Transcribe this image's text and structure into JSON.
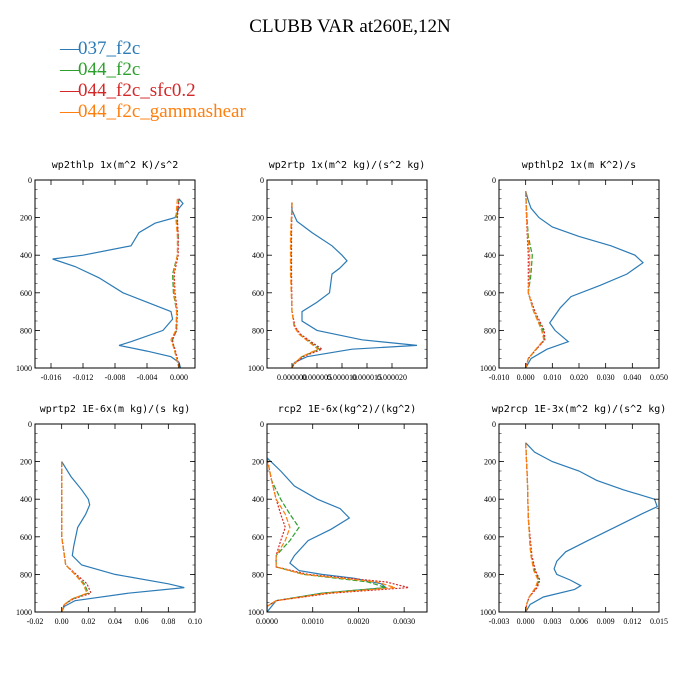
{
  "title": "CLUBB VAR at260E,12N",
  "colors": {
    "037_f2c": "#2c7bb6",
    "044_f2c": "#2ca02c",
    "044_f2c_sfc0.2": "#d62728",
    "044_f2c_gammashear": "#ff7f0e"
  },
  "legend": [
    {
      "name": "037_f2c",
      "color": "#2c7bb6",
      "dash": "solid"
    },
    {
      "name": "044_f2c",
      "color": "#2ca02c",
      "dash": "dashed"
    },
    {
      "name": "044_f2c_sfc0.2",
      "color": "#d62728",
      "dash": "dotted"
    },
    {
      "name": "044_f2c_gammashear",
      "color": "#ff7f0e",
      "dash": "dashed"
    }
  ],
  "chart_data": [
    {
      "type": "line",
      "title": "wp2thlp  1x(m^2 K)/s^2",
      "xlim": [
        -0.018,
        0.002
      ],
      "ylim": [
        1000,
        0
      ],
      "xticks": [
        -0.016,
        -0.012,
        -0.008,
        -0.004,
        0.0
      ],
      "xtick_labels": [
        "-0.016",
        "-0.012",
        "-0.008",
        "-0.004",
        "0.000"
      ],
      "yticks": [
        0,
        200,
        400,
        600,
        800,
        1000
      ],
      "series": [
        {
          "name": "037_f2c",
          "y": [
            100,
            125,
            150,
            200,
            230,
            280,
            350,
            400,
            420,
            460,
            520,
            600,
            650,
            700,
            740,
            800,
            860,
            880,
            910,
            940,
            970,
            1000
          ],
          "x": [
            0.0,
            0.0005,
            0.0,
            -0.0005,
            -0.003,
            -0.005,
            -0.006,
            -0.012,
            -0.0158,
            -0.013,
            -0.01,
            -0.007,
            -0.004,
            -0.001,
            -0.0008,
            -0.002,
            -0.006,
            -0.0075,
            -0.004,
            -0.001,
            0.0,
            0.0002
          ]
        },
        {
          "name": "044_f2c",
          "y": [
            100,
            200,
            300,
            400,
            500,
            600,
            700,
            800,
            850,
            900,
            950,
            1000
          ],
          "x": [
            0.0,
            -0.0003,
            -0.0001,
            -0.0002,
            -0.0008,
            -0.0007,
            -0.0003,
            -0.0003,
            -0.0008,
            -0.0006,
            -0.0003,
            0.0
          ]
        },
        {
          "name": "044_f2c_sfc0.2",
          "y": [
            100,
            200,
            300,
            400,
            500,
            600,
            700,
            800,
            850,
            900,
            950,
            1000
          ],
          "x": [
            0.0,
            -0.0002,
            -0.0001,
            -0.0001,
            -0.0006,
            -0.0005,
            -0.0002,
            -0.0003,
            -0.0009,
            -0.0005,
            -0.0002,
            0.0
          ]
        },
        {
          "name": "044_f2c_gammashear",
          "y": [
            100,
            200,
            300,
            400,
            500,
            600,
            700,
            800,
            850,
            900,
            950,
            1000
          ],
          "x": [
            -0.0002,
            -0.0004,
            -0.0002,
            -0.0002,
            -0.0007,
            -0.0006,
            -0.0003,
            -0.0004,
            -0.001,
            -0.0006,
            -0.0003,
            0.0
          ]
        }
      ]
    },
    {
      "type": "line",
      "title": "wp2rtp  1x(m^2 kg)/(s^2 kg)",
      "xlim": [
        -5e-06,
        2.7e-05
      ],
      "ylim": [
        1000,
        0
      ],
      "xticks": [
        0.0,
        5e-06,
        1e-05,
        1.5e-05,
        2e-05
      ],
      "xtick_labels": [
        "0.000000",
        "0.000005",
        "0.000010",
        "0.000015",
        "0.000020"
      ],
      "yticks": [
        0,
        200,
        400,
        600,
        800,
        1000
      ],
      "series": [
        {
          "name": "037_f2c",
          "y": [
            120,
            160,
            220,
            280,
            350,
            400,
            430,
            470,
            500,
            600,
            650,
            700,
            750,
            800,
            850,
            880,
            900,
            940,
            970,
            1000
          ],
          "x": [
            0.0,
            0.0,
            1e-06,
            4e-06,
            8e-06,
            1e-05,
            1.1e-05,
            9.5e-06,
            8e-06,
            7.5e-06,
            5e-06,
            2e-06,
            2e-06,
            5e-06,
            1.4e-05,
            2.5e-05,
            1.2e-05,
            3e-06,
            5e-07,
            0.0
          ]
        },
        {
          "name": "044_f2c",
          "y": [
            120,
            300,
            500,
            700,
            780,
            820,
            860,
            900,
            940,
            980,
            1000
          ],
          "x": [
            0.0,
            -2e-07,
            -2e-07,
            0.0,
            5e-07,
            1.5e-06,
            3.5e-06,
            5.5e-06,
            2e-06,
            3e-07,
            0.0
          ]
        },
        {
          "name": "044_f2c_sfc0.2",
          "y": [
            120,
            300,
            500,
            700,
            780,
            820,
            860,
            900,
            940,
            980,
            1000
          ],
          "x": [
            0.0,
            -1e-07,
            -1e-07,
            0.0,
            6e-07,
            1.7e-06,
            3.8e-06,
            6e-06,
            2.2e-06,
            4e-07,
            0.0
          ]
        },
        {
          "name": "044_f2c_gammashear",
          "y": [
            120,
            300,
            500,
            700,
            780,
            820,
            860,
            900,
            940,
            980,
            1000
          ],
          "x": [
            0.0,
            -3e-07,
            -3e-07,
            0.0,
            4e-07,
            1.4e-06,
            3.3e-06,
            5.2e-06,
            1.9e-06,
            3e-07,
            0.0
          ]
        }
      ]
    },
    {
      "type": "line",
      "title": "wpthlp2  1x(m K^2)/s",
      "xlim": [
        -0.01,
        0.05
      ],
      "ylim": [
        1000,
        0
      ],
      "xticks": [
        -0.01,
        0.0,
        0.01,
        0.02,
        0.03,
        0.04,
        0.05
      ],
      "xtick_labels": [
        "-0.010",
        "0.000",
        "0.010",
        "0.020",
        "0.030",
        "0.040",
        "0.050"
      ],
      "yticks": [
        0,
        200,
        400,
        600,
        800,
        1000
      ],
      "series": [
        {
          "name": "037_f2c",
          "y": [
            60,
            110,
            150,
            200,
            250,
            300,
            350,
            400,
            440,
            500,
            560,
            620,
            680,
            720,
            760,
            800,
            860,
            900,
            950,
            1000
          ],
          "x": [
            0.0,
            0.001,
            0.002,
            0.005,
            0.01,
            0.02,
            0.032,
            0.041,
            0.044,
            0.038,
            0.028,
            0.017,
            0.013,
            0.011,
            0.009,
            0.011,
            0.016,
            0.008,
            0.002,
            0.0
          ]
        },
        {
          "name": "044_f2c",
          "y": [
            60,
            200,
            300,
            400,
            500,
            600,
            700,
            800,
            850,
            900,
            950,
            1000
          ],
          "x": [
            0.0,
            0.0005,
            0.001,
            0.0025,
            0.002,
            0.001,
            0.003,
            0.0065,
            0.007,
            0.004,
            0.001,
            0.0
          ]
        },
        {
          "name": "044_f2c_sfc0.2",
          "y": [
            60,
            200,
            300,
            400,
            500,
            600,
            700,
            800,
            850,
            900,
            950,
            1000
          ],
          "x": [
            0.0,
            0.0003,
            0.0006,
            0.001,
            0.001,
            0.001,
            0.0035,
            0.007,
            0.0072,
            0.004,
            0.001,
            0.0
          ]
        },
        {
          "name": "044_f2c_gammashear",
          "y": [
            60,
            200,
            300,
            400,
            500,
            600,
            700,
            800,
            850,
            900,
            950,
            1000
          ],
          "x": [
            0.0,
            0.0004,
            0.0008,
            0.0015,
            0.0015,
            0.001,
            0.003,
            0.006,
            0.0068,
            0.0038,
            0.001,
            0.0
          ]
        }
      ]
    },
    {
      "type": "line",
      "title": "wprtp2  1E-6x(m kg)/(s kg)",
      "xlim": [
        -0.02,
        0.1
      ],
      "ylim": [
        1000,
        0
      ],
      "xticks": [
        -0.02,
        0.0,
        0.02,
        0.04,
        0.06,
        0.08,
        0.1
      ],
      "xtick_labels": [
        "-0.02",
        "0.00",
        "0.02",
        "0.04",
        "0.06",
        "0.08",
        "0.10"
      ],
      "yticks": [
        0,
        200,
        400,
        600,
        800,
        1000
      ],
      "series": [
        {
          "name": "037_f2c",
          "y": [
            200,
            280,
            350,
            400,
            430,
            480,
            550,
            650,
            700,
            750,
            800,
            850,
            870,
            900,
            940,
            970,
            1000
          ],
          "x": [
            0.0,
            0.007,
            0.015,
            0.02,
            0.021,
            0.018,
            0.012,
            0.009,
            0.008,
            0.015,
            0.04,
            0.08,
            0.092,
            0.05,
            0.01,
            0.002,
            0.0
          ]
        },
        {
          "name": "044_f2c",
          "y": [
            200,
            400,
            600,
            750,
            800,
            850,
            900,
            930,
            960,
            1000
          ],
          "x": [
            0.0,
            0.0,
            0.0,
            0.003,
            0.01,
            0.017,
            0.02,
            0.008,
            0.002,
            0.0
          ]
        },
        {
          "name": "044_f2c_sfc0.2",
          "y": [
            200,
            400,
            600,
            750,
            800,
            850,
            900,
            930,
            960,
            1000
          ],
          "x": [
            0.0,
            0.0,
            0.0,
            0.003,
            0.011,
            0.019,
            0.022,
            0.009,
            0.002,
            0.0
          ]
        },
        {
          "name": "044_f2c_gammashear",
          "y": [
            200,
            400,
            600,
            750,
            800,
            850,
            900,
            930,
            960,
            1000
          ],
          "x": [
            0.0,
            0.0,
            0.0,
            0.003,
            0.01,
            0.016,
            0.019,
            0.008,
            0.002,
            0.0
          ]
        }
      ]
    },
    {
      "type": "line",
      "title": "rcp2  1E-6x(kg^2)/(kg^2)",
      "xlim": [
        0.0,
        0.0035
      ],
      "ylim": [
        1000,
        0
      ],
      "xticks": [
        0.0,
        0.001,
        0.002,
        0.003
      ],
      "xtick_labels": [
        "0.0000",
        "0.0010",
        "0.0020",
        "0.0030"
      ],
      "yticks": [
        0,
        200,
        400,
        600,
        800,
        1000
      ],
      "series": [
        {
          "name": "037_f2c",
          "y": [
            180,
            250,
            330,
            400,
            450,
            500,
            560,
            620,
            700,
            740,
            780,
            800,
            820,
            850,
            870,
            900,
            940,
            970,
            1000
          ],
          "x": [
            0.0,
            0.0003,
            0.0006,
            0.0011,
            0.0016,
            0.0018,
            0.0014,
            0.0009,
            0.0006,
            0.0005,
            0.0007,
            0.0012,
            0.0019,
            0.0025,
            0.0026,
            0.0012,
            0.0002,
            0.0001,
            0.0
          ]
        },
        {
          "name": "044_f2c",
          "y": [
            180,
            300,
            400,
            480,
            550,
            620,
            700,
            760,
            800,
            840,
            870,
            900,
            940,
            970,
            1000
          ],
          "x": [
            0.0,
            0.0001,
            0.0003,
            0.0005,
            0.0007,
            0.0005,
            0.0002,
            0.0002,
            0.0008,
            0.0022,
            0.0026,
            0.0012,
            0.0002,
            0.0,
            0.0
          ]
        },
        {
          "name": "044_f2c_sfc0.2",
          "y": [
            180,
            300,
            400,
            480,
            550,
            620,
            700,
            760,
            800,
            840,
            870,
            900,
            940,
            970,
            1000
          ],
          "x": [
            0.0,
            0.0001,
            0.0002,
            0.0003,
            0.0004,
            0.0003,
            0.0002,
            0.0002,
            0.0009,
            0.0026,
            0.0031,
            0.0014,
            0.0002,
            0.0,
            0.0
          ]
        },
        {
          "name": "044_f2c_gammashear",
          "y": [
            180,
            300,
            400,
            480,
            550,
            620,
            700,
            760,
            800,
            840,
            870,
            900,
            940,
            970,
            1000
          ],
          "x": [
            0.0,
            0.0001,
            0.0002,
            0.0004,
            0.0005,
            0.0004,
            0.0002,
            0.0002,
            0.0008,
            0.0024,
            0.0028,
            0.0013,
            0.0002,
            0.0,
            0.0
          ]
        }
      ]
    },
    {
      "type": "line",
      "title": "wp2rcp  1E-3x(m^2 kg)/(s^2 kg)",
      "xlim": [
        -0.003,
        0.015
      ],
      "ylim": [
        1000,
        0
      ],
      "xticks": [
        -0.003,
        0.0,
        0.003,
        0.006,
        0.009,
        0.012,
        0.015
      ],
      "xtick_labels": [
        "-0.003",
        "0.000",
        "0.003",
        "0.006",
        "0.009",
        "0.012",
        "0.015"
      ],
      "yticks": [
        0,
        200,
        400,
        600,
        800,
        1000
      ],
      "series": [
        {
          "name": "037_f2c",
          "y": [
            100,
            150,
            200,
            250,
            300,
            350,
            400,
            440,
            480,
            550,
            620,
            680,
            730,
            770,
            800,
            830,
            860,
            880,
            920,
            960,
            1000
          ],
          "x": [
            0.0,
            0.001,
            0.003,
            0.006,
            0.008,
            0.011,
            0.0145,
            0.0148,
            0.013,
            0.01,
            0.007,
            0.0045,
            0.0035,
            0.0032,
            0.0035,
            0.005,
            0.0062,
            0.0055,
            0.002,
            0.0005,
            0.0
          ]
        },
        {
          "name": "044_f2c",
          "y": [
            100,
            300,
            500,
            650,
            700,
            780,
            830,
            870,
            920,
            960,
            1000
          ],
          "x": [
            0.0,
            0.0002,
            0.0003,
            0.0005,
            0.0006,
            0.001,
            0.0015,
            0.0012,
            0.0004,
            0.0001,
            0.0
          ]
        },
        {
          "name": "044_f2c_sfc0.2",
          "y": [
            100,
            300,
            500,
            650,
            700,
            780,
            830,
            870,
            920,
            960,
            1000
          ],
          "x": [
            0.0,
            0.0002,
            0.0003,
            0.0006,
            0.0007,
            0.0011,
            0.0016,
            0.0013,
            0.0004,
            0.0001,
            0.0
          ]
        },
        {
          "name": "044_f2c_gammashear",
          "y": [
            100,
            300,
            500,
            650,
            700,
            780,
            830,
            870,
            920,
            960,
            1000
          ],
          "x": [
            0.0,
            0.0002,
            0.0003,
            0.0005,
            0.0006,
            0.0009,
            0.0014,
            0.0011,
            0.0004,
            0.0001,
            0.0
          ]
        }
      ]
    }
  ]
}
